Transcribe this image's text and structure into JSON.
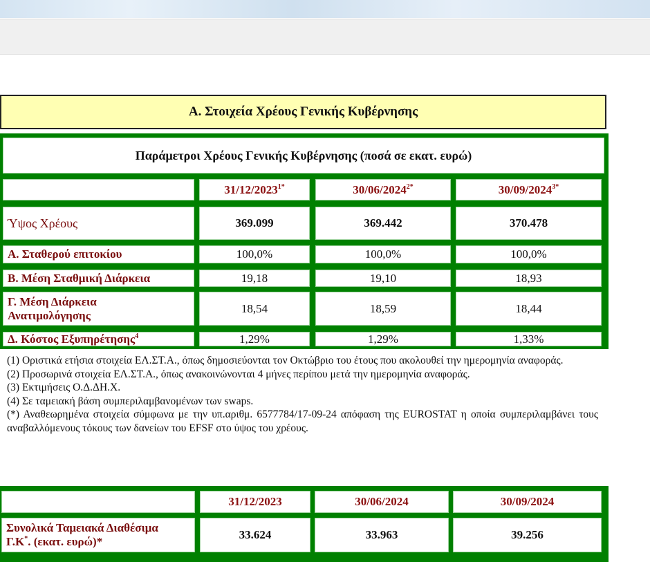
{
  "section_title": "Α. Στοιχεία Χρέους Γενικής Κυβέρνησης",
  "table1": {
    "title": "Παράμετροι Χρέους Γενικής Κυβέρνησης (ποσά σε εκατ. ευρώ)",
    "headers": [
      {
        "date": "31/12/2023",
        "sup": "1*"
      },
      {
        "date": "30/06/2024",
        "sup": "2*"
      },
      {
        "date": "30/09/2024",
        "sup": "3*"
      }
    ],
    "rows": [
      {
        "label": "Ύψος Χρέους",
        "sup": "",
        "values": [
          "369.099",
          "369.442",
          "370.478"
        ]
      },
      {
        "label": "Α. Σταθερού επιτοκίου",
        "sup": "",
        "values": [
          "100,0%",
          "100,0%",
          "100,0%"
        ]
      },
      {
        "label": "Β. Μέση Σταθμική Διάρκεια",
        "sup": "",
        "values": [
          "19,18",
          "19,10",
          "18,93"
        ]
      },
      {
        "label": "Γ. Μέση Διάρκεια Ανατιμολόγησης",
        "sup": "",
        "values": [
          "18,54",
          "18,59",
          "18,44"
        ]
      },
      {
        "label": "Δ. Κόστος Εξυπηρέτησης",
        "sup": "4",
        "values": [
          "1,29%",
          "1,29%",
          "1,33%"
        ]
      }
    ]
  },
  "footnotes": [
    "(1) Οριστικά ετήσια στοιχεία ΕΛ.ΣΤ.Α., όπως δημοσιεύονται τον Οκτώβριο του έτους που ακολουθεί την ημερομηνία αναφοράς.",
    "(2) Προσωρινά στοιχεία ΕΛ.ΣΤ.Α., όπως ανακοινώνονται 4 μήνες περίπου μετά την ημερομηνία αναφοράς.",
    "(3) Εκτιμήσεις Ο.Δ.ΔΗ.Χ.",
    "(4) Σε ταμειακή βάση συμπεριλαμβανομένων των swaps.",
    "(*) Αναθεωρημένα στοιχεία σύμφωνα με την υπ.αριθμ. 6577784/17-09-24 απόφαση της EUROSTAT η οποία συμπεριλαμβάνει τους αναβαλλόμενους τόκους των δανείων του EFSF στο ύψος του χρέους."
  ],
  "table2": {
    "headers": [
      "31/12/2023",
      "30/06/2024",
      "30/09/2024"
    ],
    "row": {
      "label_part1": "Συνολικά Ταμειακά Διαθέσιμα",
      "label_part2a": "Γ.Κ",
      "label_sup": "*",
      "label_part2b": ". (εκατ. ευρώ)*",
      "values": [
        "33.624",
        "33.963",
        "39.256"
      ]
    }
  },
  "colors": {
    "table_green": "#008000",
    "label_red": "#7a0f0f",
    "title_yellow": "#ffffb3"
  }
}
